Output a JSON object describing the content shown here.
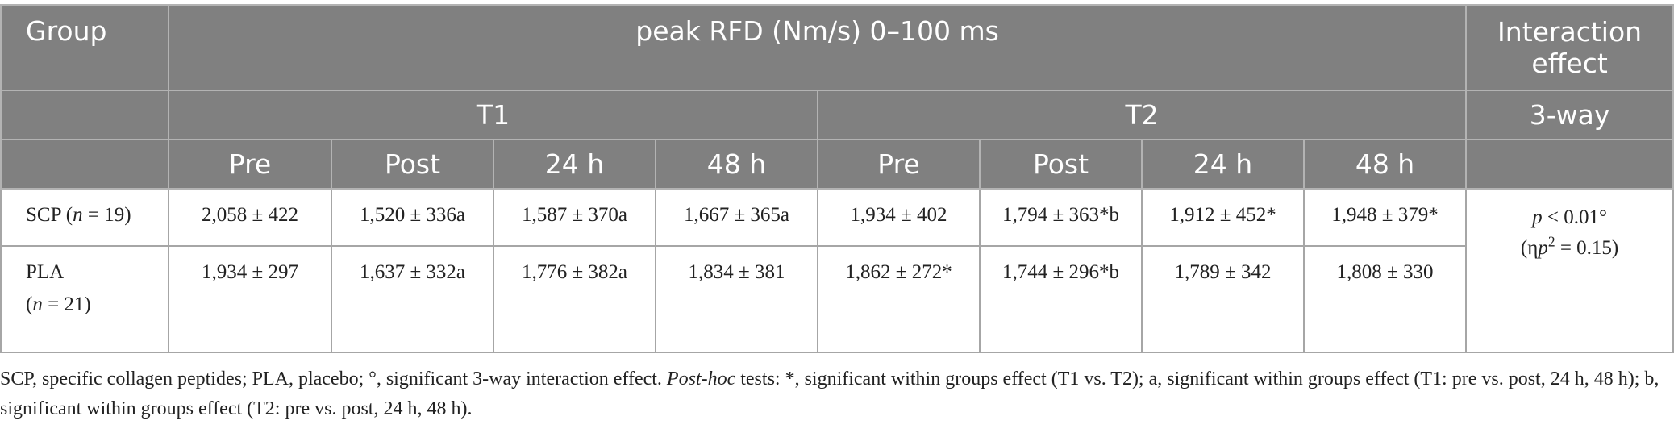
{
  "table": {
    "header": {
      "group": "Group",
      "measure": "peak RFD (Nm/s) 0–100 ms",
      "interaction": "Interaction effect",
      "periods": [
        "T1",
        "T2"
      ],
      "interaction_type": "3-way",
      "timepoints": [
        "Pre",
        "Post",
        "24 h",
        "48 h",
        "Pre",
        "Post",
        "24 h",
        "48 h"
      ]
    },
    "rows": [
      {
        "group": [
          {
            "text": "SCP ("
          },
          {
            "text": "n",
            "italic": true
          },
          {
            "text": " = 19)"
          }
        ],
        "values": [
          "2,058 ± 422",
          "1,520 ± 336a",
          "1,587 ± 370a",
          "1,667 ± 365a",
          "1,934 ± 402",
          "1,794 ± 363*b",
          "1,912 ± 452*",
          "1,948 ± 379*"
        ]
      },
      {
        "group": [
          {
            "text": "PLA"
          },
          {
            "text": "(",
            "break": true
          },
          {
            "text": "n",
            "italic": true
          },
          {
            "text": " = 21)"
          }
        ],
        "values": [
          "1,934 ± 297",
          "1,637 ± 332a",
          "1,776 ± 382a",
          "1,834 ± 381",
          "1,862 ± 272*",
          "1,744 ± 296*b",
          "1,789 ± 342",
          "1,808 ± 330"
        ]
      }
    ],
    "interaction": [
      [
        {
          "text": "p",
          "italic": true
        },
        {
          "text": " < 0.01°"
        }
      ],
      [
        {
          "text": "(η"
        },
        {
          "text": "p",
          "italic": true
        },
        {
          "text": "2",
          "sup": true
        },
        {
          "text": " = 0.15)"
        }
      ]
    ]
  },
  "footnote": [
    {
      "text": "SCP, specific collagen peptides; PLA, placebo; °, significant 3-way interaction effect. "
    },
    {
      "text": "Post-hoc",
      "italic": true
    },
    {
      "text": " tests: *, significant within groups effect (T1 vs. T2); a, significant within groups effect (T1: pre vs. post, 24 h, 48 h); b, significant within groups effect (T2: pre vs. post, 24 h, 48 h)."
    }
  ]
}
